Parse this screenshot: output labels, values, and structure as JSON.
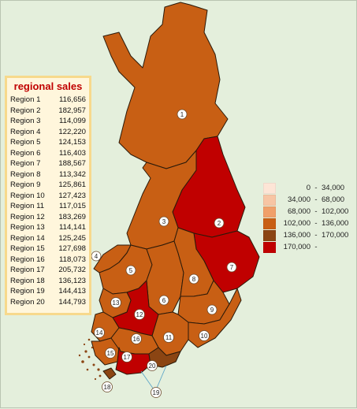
{
  "table": {
    "title": "regional sales",
    "rows": [
      {
        "name": "Region 1",
        "value": "116,656"
      },
      {
        "name": "Region 2",
        "value": "182,957"
      },
      {
        "name": "Region 3",
        "value": "114,099"
      },
      {
        "name": "Region 4",
        "value": "122,220"
      },
      {
        "name": "Region 5",
        "value": "124,153"
      },
      {
        "name": "Region 6",
        "value": "116,403"
      },
      {
        "name": "Region 7",
        "value": "188,567"
      },
      {
        "name": "Region 8",
        "value": "113,342"
      },
      {
        "name": "Region 9",
        "value": "125,861"
      },
      {
        "name": "Region 10",
        "value": "127,423"
      },
      {
        "name": "Region 11",
        "value": "117,015"
      },
      {
        "name": "Region 12",
        "value": "183,269"
      },
      {
        "name": "Region 13",
        "value": "114,141"
      },
      {
        "name": "Region 14",
        "value": "125,245"
      },
      {
        "name": "Region 15",
        "value": "127,698"
      },
      {
        "name": "Region 16",
        "value": "118,073"
      },
      {
        "name": "Region 17",
        "value": "205,732"
      },
      {
        "name": "Region 18",
        "value": "136,123"
      },
      {
        "name": "Region 19",
        "value": "144,413"
      },
      {
        "name": "Region 20",
        "value": "144,793"
      }
    ]
  },
  "legend": {
    "bins": [
      {
        "low": "0",
        "high": "34,000",
        "color": "#fde5d6"
      },
      {
        "low": "34,000",
        "high": "68,000",
        "color": "#f7c5a4"
      },
      {
        "low": "68,000",
        "high": "102,000",
        "color": "#f0a06a"
      },
      {
        "low": "102,000",
        "high": "136,000",
        "color": "#c85f14"
      },
      {
        "low": "136,000",
        "high": "170,000",
        "color": "#8b4513"
      },
      {
        "low": "170,000",
        "high": "",
        "color": "#c00000"
      }
    ]
  },
  "map": {
    "marker_labels": [
      "1",
      "2",
      "3",
      "4",
      "5",
      "6",
      "7",
      "8",
      "9",
      "10",
      "11",
      "12",
      "13",
      "14",
      "15",
      "16",
      "17",
      "18",
      "19",
      "20"
    ]
  },
  "colors": {
    "background": "#e4efdc",
    "mid": "#c85f14",
    "high": "#8b4513",
    "top": "#c00000"
  }
}
